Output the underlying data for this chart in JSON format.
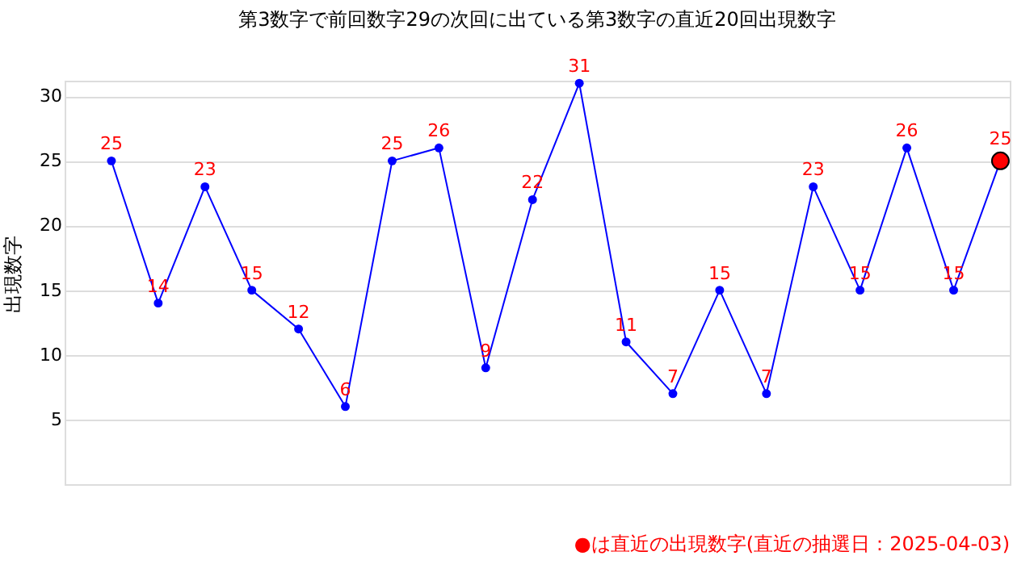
{
  "chart_data": {
    "type": "line",
    "title": "第3数字で前回数字29の次回に出ている第3数字の直近20回出現数字",
    "ylabel": "出現数字",
    "categories": [
      null,
      null,
      null,
      null,
      null,
      null,
      null,
      null,
      null,
      null,
      null,
      null,
      null,
      null,
      null,
      null,
      null,
      null,
      null,
      null
    ],
    "series": [
      {
        "color": "#0000ff",
        "values": [
          25,
          14,
          23,
          15,
          12,
          6,
          25,
          26,
          9,
          22,
          31,
          11,
          7,
          15,
          7,
          23,
          15,
          26,
          15,
          25
        ],
        "value_labels": [
          "25",
          "14",
          "23",
          "15",
          "12",
          "6",
          "25",
          "26",
          "9",
          "22",
          "31",
          "11",
          "7",
          "15",
          "7",
          "23",
          "15",
          "26",
          "15",
          null
        ]
      },
      {
        "type": "scatter",
        "color": "#ff0000",
        "values": [
          null,
          null,
          null,
          null,
          null,
          null,
          null,
          null,
          null,
          null,
          null,
          null,
          null,
          null,
          null,
          null,
          null,
          null,
          null,
          25
        ],
        "value_labels": [
          null,
          null,
          null,
          null,
          null,
          null,
          null,
          null,
          null,
          null,
          null,
          null,
          null,
          null,
          null,
          null,
          null,
          null,
          null,
          "25"
        ]
      }
    ],
    "ylim": [
      0,
      31.2
    ],
    "yticks": [
      5,
      10,
      15,
      20,
      25,
      30
    ],
    "grid": "y",
    "marker": "circle",
    "tick_labels": "y",
    "annotations": [
      "●は直近の出現数字(直近の抽選日：2025-04-03)"
    ]
  }
}
